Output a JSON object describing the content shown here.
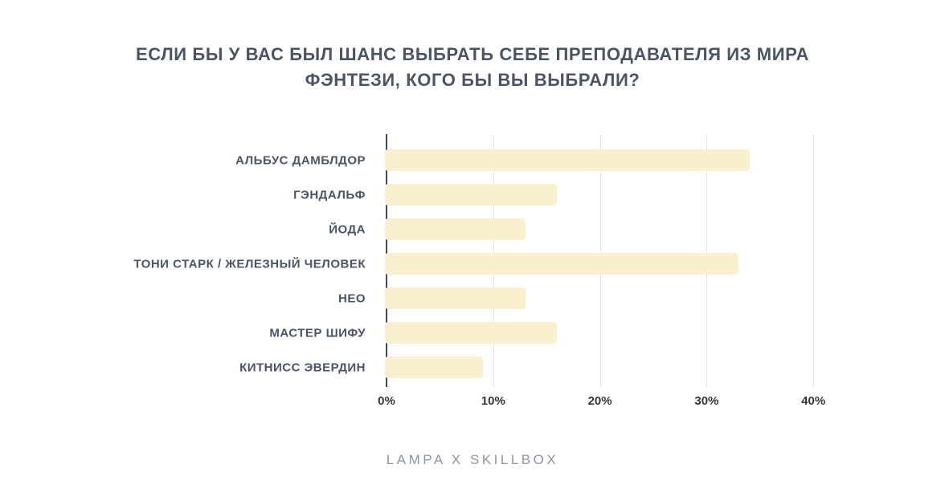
{
  "page": {
    "footer": {
      "brand": "LAMPA X SKILLBOX"
    }
  },
  "chart_data": {
    "type": "bar",
    "orientation": "horizontal",
    "title": "ЕСЛИ БЫ У ВАС БЫЛ ШАНС ВЫБРАТЬ СЕБЕ ПРЕПОДАВАТЕЛЯ ИЗ МИРА ФЭНТЕЗИ, КОГО БЫ ВЫ ВЫБРАЛИ?",
    "title_lines": [
      "ЕСЛИ БЫ У ВАС БЫЛ ШАНС ВЫБРАТЬ СЕБЕ ПРЕПОДАВАТЕЛЯ ИЗ МИРА",
      "ФЭНТЕЗИ, КОГО БЫ ВЫ ВЫБРАЛИ?"
    ],
    "categories": [
      "АЛЬБУС ДАМБЛДОР",
      "ГЭНДАЛЬФ",
      "ЙОДА",
      "ТОНИ СТАРК / ЖЕЛЕЗНЫЙ ЧЕЛОВЕК",
      "НЕО",
      "МАСТЕР ШИФУ",
      "КИТНИСС ЭВЕРДИН"
    ],
    "values": [
      34,
      16,
      13,
      33,
      13,
      16,
      9
    ],
    "value_unit": "%",
    "xlabel": "",
    "ylabel": "",
    "xlim": [
      0,
      44
    ],
    "x_ticks": [
      {
        "value": 0,
        "label": "0%"
      },
      {
        "value": 10,
        "label": "10%"
      },
      {
        "value": 20,
        "label": "20%"
      },
      {
        "value": 30,
        "label": "30%"
      },
      {
        "value": 40,
        "label": "40%"
      }
    ],
    "grid": "vertical-gridlines-at-ticks",
    "legend": "none",
    "colors": {
      "bar": "#FAF0D0",
      "title_text": "#4A5564",
      "category_label_text": "#4A5564",
      "tick_label_text": "#33373C",
      "axis_line": "#3F4854",
      "gridline": "#E3E3E3",
      "footer_text": "#8C95A1",
      "background": "#FFFFFF"
    }
  }
}
